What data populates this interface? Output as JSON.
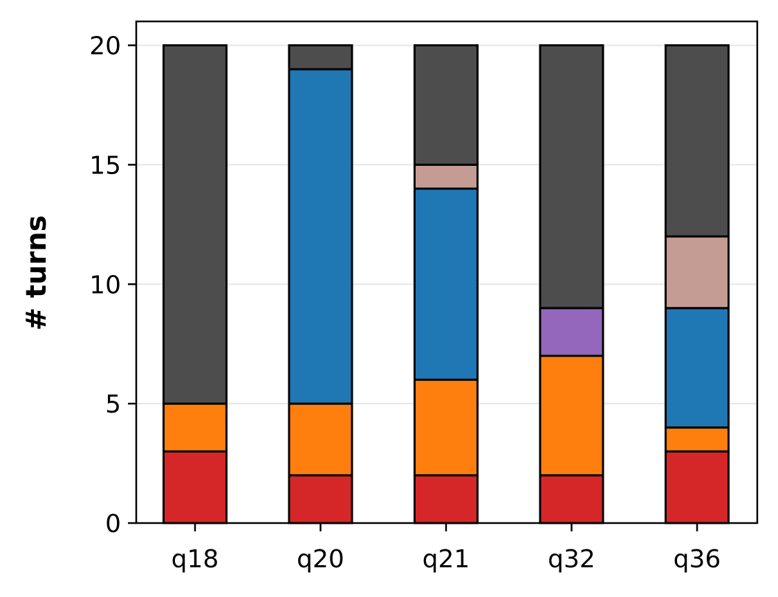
{
  "chart_data": {
    "type": "bar",
    "stacked": true,
    "title": "",
    "xlabel": "",
    "ylabel": "# turns",
    "ylim": [
      0,
      21
    ],
    "yticks": [
      0,
      5,
      10,
      15,
      20
    ],
    "grid": "horizontal",
    "legend": "none",
    "categories": [
      "q18",
      "q20",
      "q21",
      "q32",
      "q36"
    ],
    "series": [
      {
        "color": "#d62728",
        "values": [
          3,
          2,
          2,
          2,
          3
        ]
      },
      {
        "color": "#ff7f0e",
        "values": [
          2,
          3,
          4,
          5,
          1
        ]
      },
      {
        "color": "#9467bd",
        "values": [
          0,
          0,
          0,
          2,
          0
        ]
      },
      {
        "color": "#1f77b4",
        "values": [
          0,
          14,
          8,
          0,
          5
        ]
      },
      {
        "color": "#c49c94",
        "values": [
          0,
          0,
          1,
          0,
          3
        ]
      },
      {
        "color": "#4d4d4d",
        "values": [
          15,
          1,
          5,
          11,
          8
        ]
      }
    ]
  }
}
